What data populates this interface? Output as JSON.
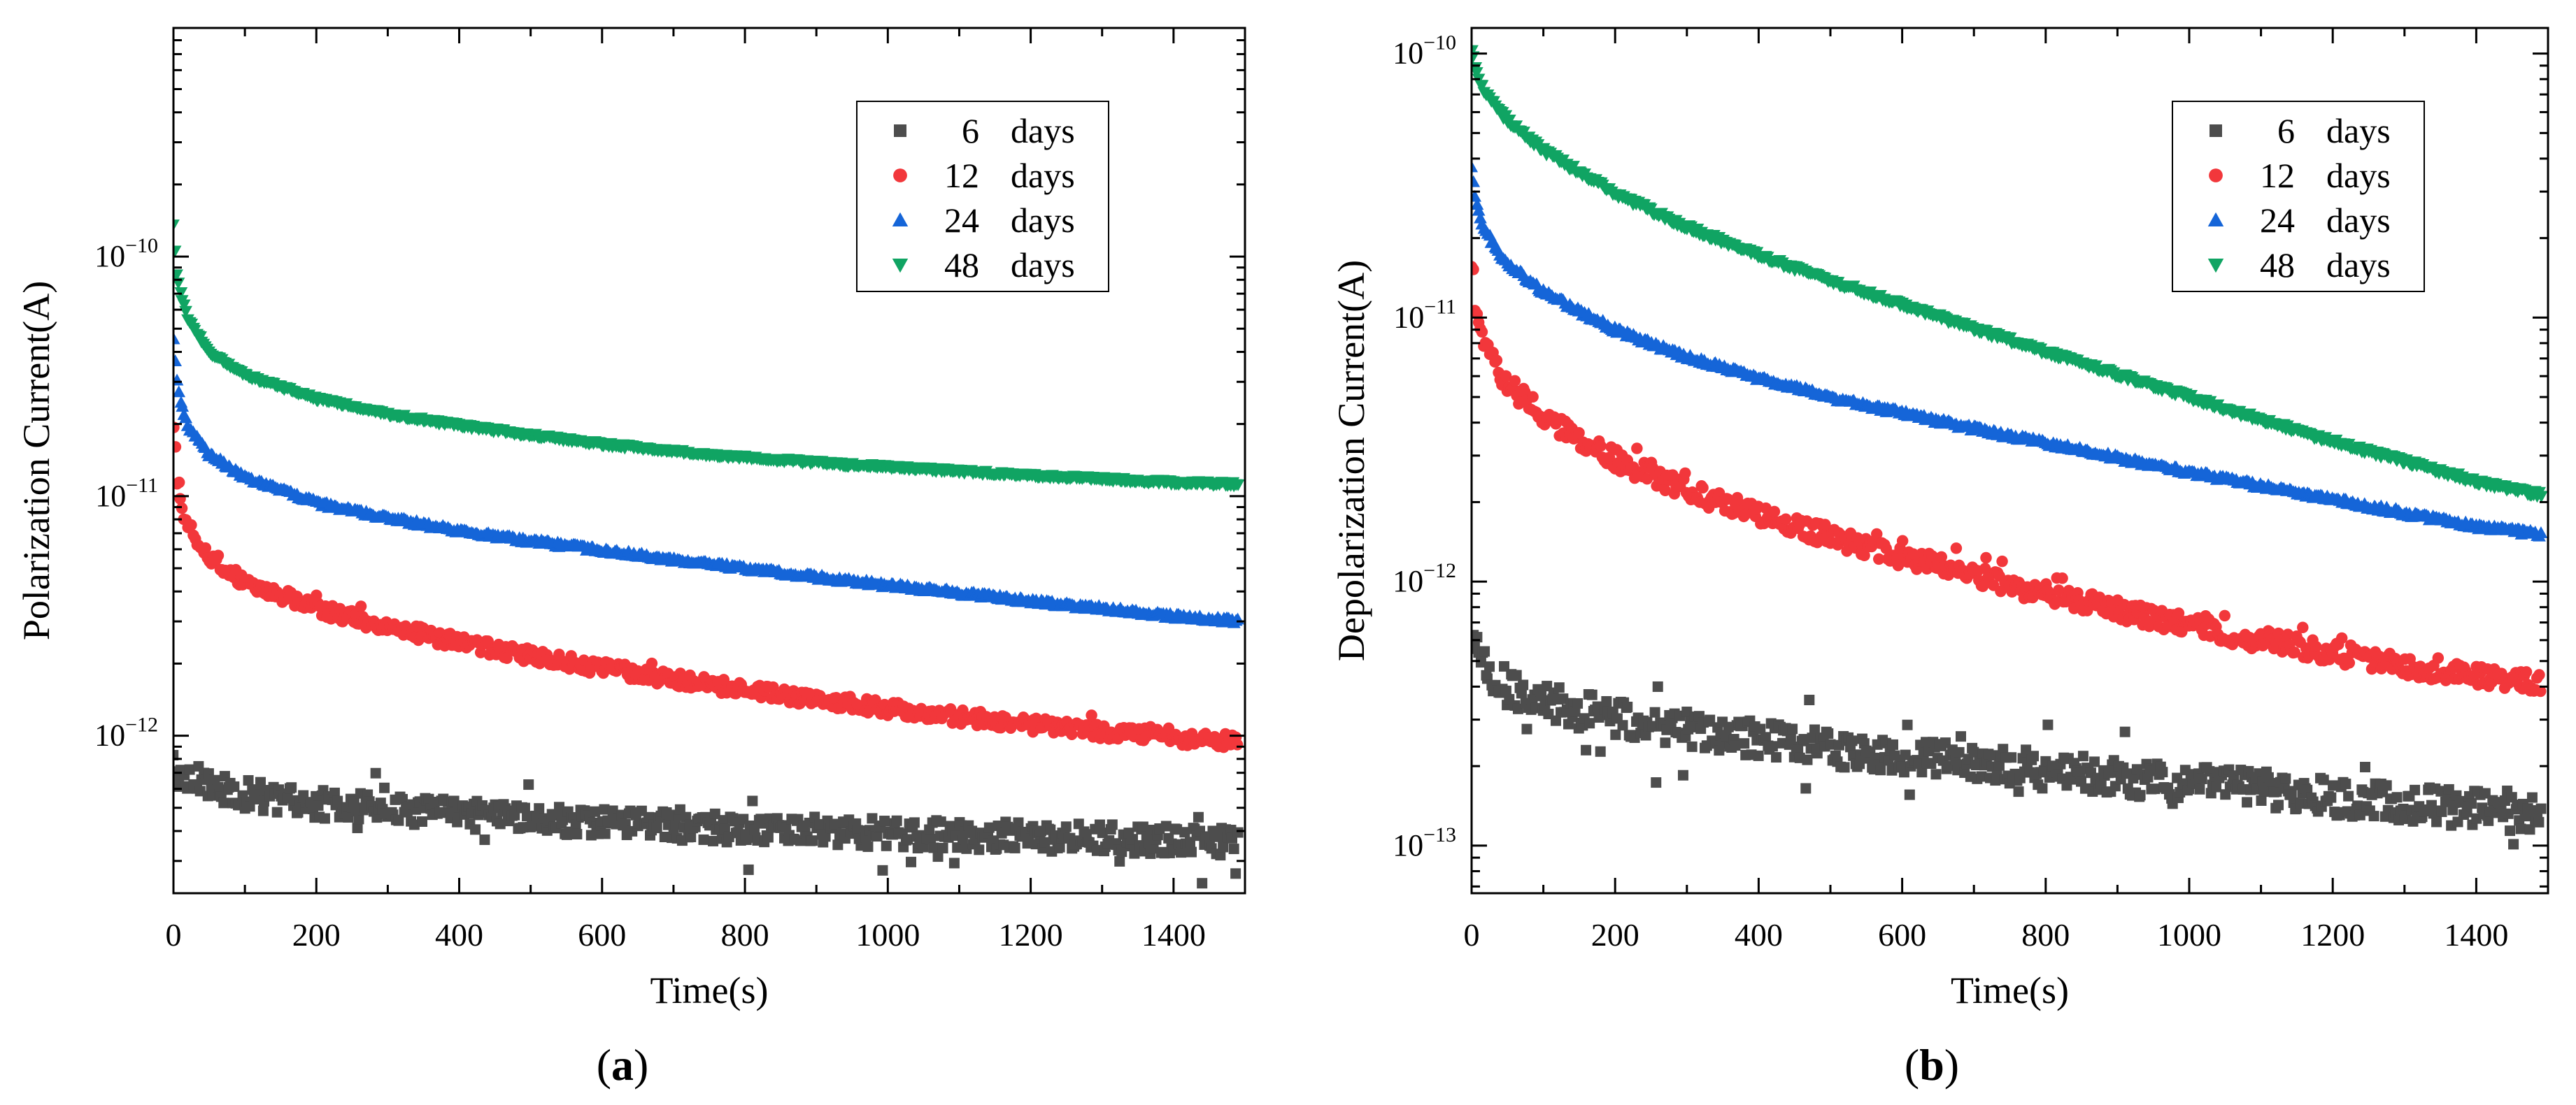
{
  "chart_data": [
    {
      "panel": "(a)",
      "panel_letter": "a",
      "type": "scatter",
      "xlabel": "Time(s)",
      "ylabel": "Polarization Current(A)",
      "xlim": [
        0,
        1500
      ],
      "ylim": [
        2.2e-13,
        9e-10
      ],
      "yscale": "log",
      "xticks": [
        0,
        200,
        400,
        600,
        800,
        1000,
        1200,
        1400
      ],
      "yticks": [
        {
          "value": 1e-12,
          "base": "10",
          "exp": "−12"
        },
        {
          "value": 1e-11,
          "base": "10",
          "exp": "−11"
        },
        {
          "value": 1e-10,
          "base": "10",
          "exp": "−10"
        }
      ],
      "legend_position": "top-right",
      "series": [
        {
          "name": "6",
          "unit": "days",
          "marker": "square",
          "color": "#4d4d4d",
          "x": [
            0,
            5,
            20,
            50,
            100,
            200,
            300,
            400,
            500,
            600,
            700,
            800,
            900,
            1000,
            1100,
            1200,
            1300,
            1400,
            1500
          ],
          "values": [
            8e-13,
            7.5e-13,
            6.8e-13,
            6.2e-13,
            5.7e-13,
            5.2e-13,
            4.9e-13,
            4.7e-13,
            4.5e-13,
            4.35e-13,
            4.2e-13,
            4.1e-13,
            4e-13,
            3.92e-13,
            3.85e-13,
            3.78e-13,
            3.72e-13,
            3.67e-13,
            3.62e-13
          ],
          "noise": 0.12
        },
        {
          "name": "12",
          "unit": "days",
          "marker": "circle",
          "color": "#f2373b",
          "x": [
            0,
            5,
            10,
            20,
            50,
            100,
            200,
            300,
            400,
            500,
            600,
            700,
            800,
            900,
            1000,
            1100,
            1200,
            1300,
            1400,
            1500
          ],
          "values": [
            1.9e-11,
            1.2e-11,
            9.5e-12,
            7.5e-12,
            5.6e-12,
            4.4e-12,
            3.4e-12,
            2.85e-12,
            2.45e-12,
            2.15e-12,
            1.92e-12,
            1.72e-12,
            1.56e-12,
            1.42e-12,
            1.3e-12,
            1.2e-12,
            1.11e-12,
            1.04e-12,
            9.8e-13,
            9.4e-13
          ],
          "noise": 0.06
        },
        {
          "name": "24",
          "unit": "days",
          "marker": "triangle-up",
          "color": "#1565d8",
          "x": [
            0,
            5,
            10,
            20,
            50,
            100,
            200,
            300,
            400,
            500,
            600,
            700,
            800,
            900,
            1000,
            1100,
            1200,
            1300,
            1400,
            1500
          ],
          "values": [
            4.5e-11,
            3e-11,
            2.5e-11,
            1.95e-11,
            1.5e-11,
            1.2e-11,
            9.4e-12,
            8.1e-12,
            7.2e-12,
            6.5e-12,
            5.95e-12,
            5.45e-12,
            5e-12,
            4.6e-12,
            4.25e-12,
            3.95e-12,
            3.65e-12,
            3.4e-12,
            3.15e-12,
            3e-12
          ],
          "noise": 0.02
        },
        {
          "name": "48",
          "unit": "days",
          "marker": "triangle-down",
          "color": "#10a463",
          "x": [
            0,
            5,
            10,
            20,
            50,
            100,
            200,
            300,
            400,
            500,
            600,
            700,
            800,
            900,
            1000,
            1100,
            1200,
            1300,
            1400,
            1500
          ],
          "values": [
            1.35e-10,
            8.5e-11,
            7e-11,
            5.5e-11,
            4e-11,
            3.2e-11,
            2.55e-11,
            2.2e-11,
            1.97e-11,
            1.8e-11,
            1.65e-11,
            1.54e-11,
            1.45e-11,
            1.38e-11,
            1.32e-11,
            1.27e-11,
            1.22e-11,
            1.18e-11,
            1.14e-11,
            1.12e-11
          ],
          "noise": 0.015
        }
      ]
    },
    {
      "panel": "(b)",
      "panel_letter": "b",
      "type": "scatter",
      "xlabel": "Time(s)",
      "ylabel": "Depolarization Current(A)",
      "xlim": [
        0,
        1500
      ],
      "ylim": [
        6.6e-14,
        1.25e-10
      ],
      "yscale": "log",
      "xticks": [
        0,
        200,
        400,
        600,
        800,
        1000,
        1200,
        1400
      ],
      "yticks": [
        {
          "value": 1e-13,
          "base": "10",
          "exp": "−13"
        },
        {
          "value": 1e-12,
          "base": "10",
          "exp": "−12"
        },
        {
          "value": 1e-11,
          "base": "10",
          "exp": "−11"
        },
        {
          "value": 1e-10,
          "base": "10",
          "exp": "−10"
        }
      ],
      "legend_position": "top-right",
      "series": [
        {
          "name": "6",
          "unit": "days",
          "marker": "square",
          "color": "#4d4d4d",
          "x": [
            0,
            5,
            20,
            50,
            100,
            200,
            300,
            400,
            500,
            600,
            700,
            800,
            900,
            1000,
            1100,
            1200,
            1300,
            1400,
            1500
          ],
          "values": [
            6.5e-13,
            5.5e-13,
            4.6e-13,
            4e-13,
            3.5e-13,
            3.05e-13,
            2.75e-13,
            2.52e-13,
            2.35e-13,
            2.2e-13,
            2.05e-13,
            1.93e-13,
            1.83e-13,
            1.73e-13,
            1.63e-13,
            1.53e-13,
            1.45e-13,
            1.37e-13,
            1.3e-13
          ],
          "noise": 0.14
        },
        {
          "name": "12",
          "unit": "days",
          "marker": "circle",
          "color": "#f2373b",
          "x": [
            0,
            5,
            10,
            20,
            50,
            100,
            200,
            300,
            400,
            500,
            600,
            700,
            800,
            900,
            1000,
            1100,
            1200,
            1300,
            1400,
            1500
          ],
          "values": [
            1.7e-11,
            1.15e-11,
            9.5e-12,
            7.6e-12,
            5.6e-12,
            4.2e-12,
            2.9e-12,
            2.2e-12,
            1.78e-12,
            1.48e-12,
            1.25e-12,
            1.06e-12,
            9e-13,
            7.8e-13,
            6.8e-13,
            6e-13,
            5.4e-13,
            4.8e-13,
            4.4e-13,
            4.1e-13
          ],
          "noise": 0.08
        },
        {
          "name": "24",
          "unit": "days",
          "marker": "triangle-up",
          "color": "#1565d8",
          "x": [
            0,
            5,
            10,
            20,
            50,
            100,
            200,
            300,
            400,
            500,
            600,
            700,
            800,
            900,
            1000,
            1100,
            1200,
            1300,
            1400,
            1500
          ],
          "values": [
            3.8e-11,
            2.9e-11,
            2.5e-11,
            2.1e-11,
            1.6e-11,
            1.25e-11,
            9e-12,
            7.1e-12,
            5.9e-12,
            5e-12,
            4.35e-12,
            3.8e-12,
            3.35e-12,
            2.95e-12,
            2.6e-12,
            2.3e-12,
            2.05e-12,
            1.82e-12,
            1.62e-12,
            1.5e-12
          ],
          "noise": 0.02
        },
        {
          "name": "48",
          "unit": "days",
          "marker": "triangle-down",
          "color": "#10a463",
          "x": [
            0,
            5,
            10,
            20,
            50,
            100,
            200,
            300,
            400,
            500,
            600,
            700,
            800,
            900,
            1000,
            1100,
            1200,
            1300,
            1400,
            1500
          ],
          "values": [
            1.05e-10,
            8.8e-11,
            8e-11,
            7e-11,
            5.6e-11,
            4.3e-11,
            2.95e-11,
            2.2e-11,
            1.72e-11,
            1.38e-11,
            1.12e-11,
            9.1e-12,
            7.4e-12,
            6.1e-12,
            5e-12,
            4.1e-12,
            3.4e-12,
            2.85e-12,
            2.4e-12,
            2.1e-12
          ],
          "noise": 0.02
        }
      ]
    }
  ]
}
